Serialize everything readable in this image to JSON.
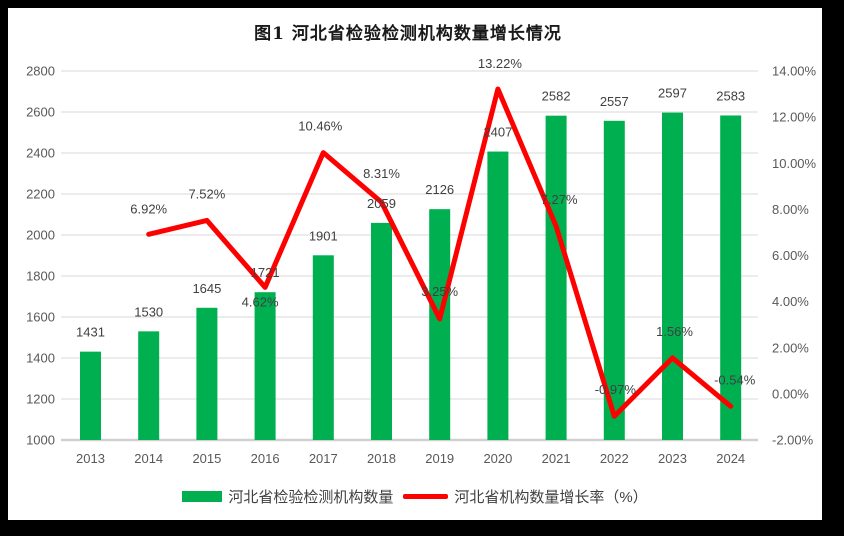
{
  "chart_data": {
    "type": "bar-line-combo",
    "title": "图1  河北省检验检测机构数量增长情况",
    "categories": [
      "2013",
      "2014",
      "2015",
      "2016",
      "2017",
      "2018",
      "2019",
      "2020",
      "2021",
      "2022",
      "2023",
      "2024"
    ],
    "series": [
      {
        "name": "河北省检验检测机构数量",
        "type": "bar",
        "axis": "left",
        "color": "#00B050",
        "values": [
          1431,
          1530,
          1645,
          1721,
          1901,
          2059,
          2126,
          2407,
          2582,
          2557,
          2597,
          2583
        ],
        "labels": [
          "1431",
          "1530",
          "1645",
          "1721",
          "1901",
          "2059",
          "2126",
          "2407",
          "2582",
          "2557",
          "2597",
          "2583"
        ]
      },
      {
        "name": "河北省机构数量增长率（%）",
        "type": "line",
        "axis": "right",
        "color": "#FF0000",
        "start_index": 1,
        "values": [
          6.92,
          7.52,
          4.62,
          10.46,
          8.31,
          3.25,
          13.22,
          7.27,
          -0.97,
          1.56,
          -0.54
        ],
        "labels": [
          "6.92%",
          "7.52%",
          "4.62%",
          "10.46%",
          "8.31%",
          "3.25%",
          "13.22%",
          "7.27%",
          "-0.97%",
          "1.56%",
          "-0.54%"
        ],
        "label_dx": [
          0,
          0,
          -5,
          -3,
          0,
          0,
          2,
          3,
          1,
          2,
          4
        ],
        "label_dy": [
          -21,
          -22,
          19,
          -22,
          -24,
          -23,
          -21,
          -22,
          -22,
          -22,
          -22
        ]
      }
    ],
    "left_axis": {
      "ticks": [
        "2800",
        "2600",
        "2400",
        "2200",
        "2000",
        "1800",
        "1600",
        "1400",
        "1200",
        "1000"
      ],
      "min": 1000,
      "max": 2800
    },
    "right_axis": {
      "ticks": [
        "14.00%",
        "12.00%",
        "10.00%",
        "8.00%",
        "6.00%",
        "4.00%",
        "2.00%",
        "0.00%",
        "-2.00%"
      ],
      "min": -2,
      "max": 14
    },
    "grid": true,
    "legend_position": "bottom",
    "colors": {
      "gridline": "#D9D9D9",
      "axis_line": "#D0D0D0",
      "tick_label": "#595959",
      "data_label": "#404040",
      "frame": "#000000",
      "panel": "#FFFFFF"
    }
  }
}
